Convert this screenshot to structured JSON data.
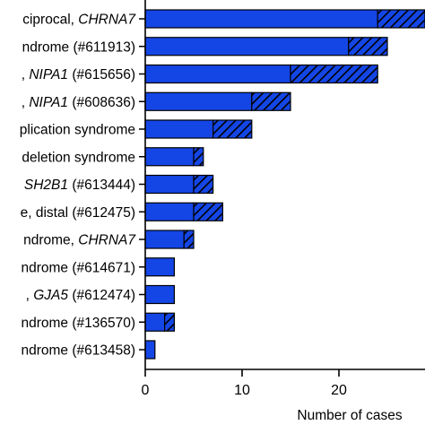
{
  "chart_data": {
    "type": "bar",
    "orientation": "horizontal",
    "stacked": true,
    "categories": [
      "ciprocal, CHRNA7",
      "ndrome (#611913)",
      ", NIPA1 (#615656)",
      ", NIPA1 (#608636)",
      "plication syndrome",
      "deletion syndrome",
      "SH2B1 (#613444)",
      "e, distal (#612475)",
      "ndrome, CHRNA7",
      "ndrome (#614671)",
      ", GJA5 (#612474)",
      "ndrome (#136570)",
      "ndrome (#613458)"
    ],
    "series": [
      {
        "values": [
          24,
          21,
          15,
          11,
          7,
          5,
          5,
          5,
          4,
          3,
          3,
          2,
          1
        ]
      },
      {
        "values": [
          6,
          4,
          9,
          4,
          4,
          1,
          2,
          3,
          1,
          0,
          0,
          1,
          0
        ]
      }
    ],
    "colors": {
      "solid": "#1446e6",
      "hatched_bg": "#1446e6",
      "hatch": "#000000",
      "edge": "#000000"
    },
    "xlabel": "Number of cases",
    "ylabel": "",
    "title": "",
    "xticks": [
      0,
      10,
      20
    ],
    "xlim": [
      0,
      28
    ],
    "grid": false,
    "legend": "none"
  }
}
